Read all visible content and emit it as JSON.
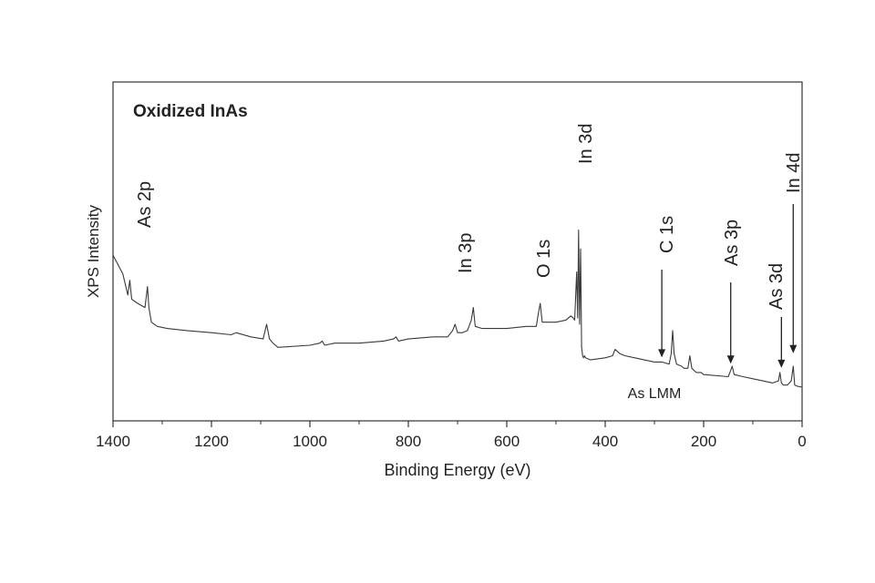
{
  "chart_data": {
    "type": "line",
    "title": "Oxidized InAs",
    "xlabel": "Binding Energy (eV)",
    "ylabel": "XPS Intensity",
    "xlim": [
      1400,
      0
    ],
    "x_reversed": true,
    "ylim": [
      0,
      100
    ],
    "y_tick_labels_shown": false,
    "grid": false,
    "x_ticks": [
      1400,
      1200,
      1000,
      800,
      600,
      400,
      200,
      0
    ],
    "x_tick_labels": [
      "1400",
      "1200",
      "1000",
      "800",
      "600",
      "400",
      "200",
      "0"
    ],
    "series": [
      {
        "x": [
          1400,
          1380,
          1370,
          1366,
          1362,
          1350,
          1335,
          1330,
          1327,
          1322,
          1310,
          1290,
          1250,
          1200,
          1160,
          1150,
          1120,
          1095,
          1088,
          1082,
          1075,
          1065,
          1000,
          980,
          975,
          970,
          950,
          900,
          850,
          830,
          825,
          820,
          800,
          750,
          720,
          710,
          705,
          700,
          690,
          680,
          672,
          668,
          664,
          650,
          600,
          560,
          540,
          536,
          532,
          528,
          500,
          480,
          470,
          465,
          462,
          458,
          456,
          454,
          452,
          450,
          448,
          446,
          444,
          442,
          440,
          430,
          400,
          385,
          380,
          375,
          370,
          360,
          340,
          300,
          285,
          270,
          266,
          263,
          260,
          255,
          245,
          240,
          232,
          228,
          224,
          215,
          205,
          200,
          150,
          145,
          142,
          138,
          120,
          100,
          80,
          60,
          48,
          45,
          42,
          38,
          30,
          22,
          18,
          15,
          10,
          0
        ],
        "y": [
          63,
          54,
          44,
          51,
          42,
          40,
          38,
          48,
          38,
          31,
          29,
          28,
          27,
          26,
          25,
          26,
          24,
          23,
          30,
          23,
          21,
          19,
          20,
          21,
          22,
          20,
          21,
          21,
          22,
          23,
          24,
          22,
          23,
          24,
          24,
          27,
          30,
          26,
          26,
          27,
          32,
          38,
          29,
          28,
          28,
          29,
          29,
          35,
          40,
          31,
          31,
          32,
          34,
          33,
          32,
          55,
          33,
          75,
          30,
          66,
          19,
          15,
          14,
          15,
          14,
          13,
          14,
          15,
          18,
          17,
          16,
          15,
          14,
          12,
          12,
          11,
          16,
          27,
          16,
          11,
          10,
          9,
          9,
          15,
          9,
          7,
          7,
          6,
          5,
          8,
          10,
          6,
          5,
          4,
          3,
          2,
          3,
          7,
          2,
          1,
          1,
          3,
          10,
          1,
          0.5,
          0
        ]
      }
    ],
    "annotations": [
      {
        "label": "As 2p",
        "x": 1335,
        "arrow": false
      },
      {
        "label": "In 3p",
        "x": 690,
        "arrow": false
      },
      {
        "label": "O 1s",
        "x": 535,
        "arrow": false
      },
      {
        "label": "In 3d",
        "x": 450,
        "arrow": false
      },
      {
        "label": "C 1s",
        "x": 285,
        "arrow": true,
        "arrow_tip_y": 12
      },
      {
        "label": "As 3p",
        "x": 145,
        "arrow": true,
        "arrow_tip_y": 9
      },
      {
        "label": "As 3d",
        "x": 42,
        "arrow": true,
        "arrow_tip_y": 7
      },
      {
        "label": "In 4d",
        "x": 18,
        "arrow": true,
        "arrow_tip_y": 14
      },
      {
        "label": "As LMM",
        "x": 330,
        "arrow": false,
        "horizontal": true
      }
    ]
  }
}
